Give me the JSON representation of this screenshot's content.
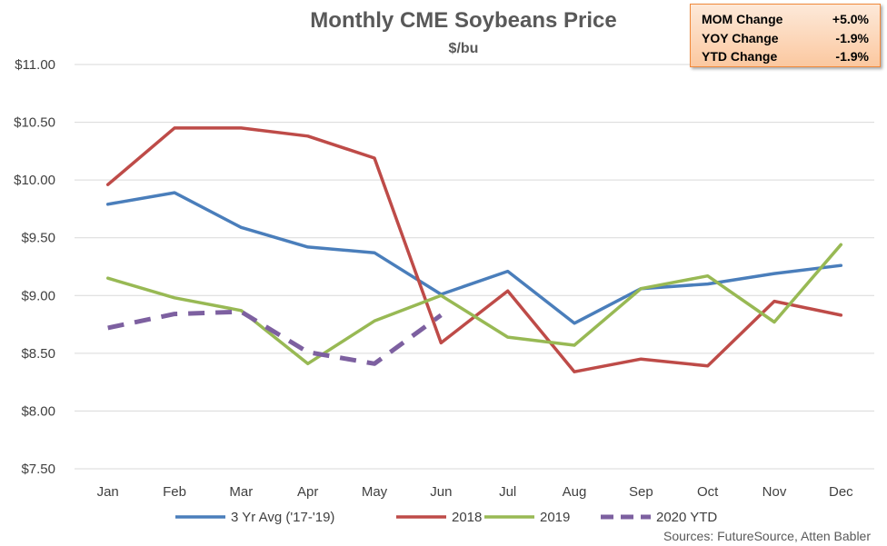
{
  "chart_data": {
    "type": "line",
    "title": "Monthly CME Soybeans Price",
    "subtitle": "$/bu",
    "categories": [
      "Jan",
      "Feb",
      "Mar",
      "Apr",
      "May",
      "Jun",
      "Jul",
      "Aug",
      "Sep",
      "Oct",
      "Nov",
      "Dec"
    ],
    "ylim": [
      7.5,
      11.0
    ],
    "yticks": [
      7.5,
      8.0,
      8.5,
      9.0,
      9.5,
      10.0,
      10.5,
      11.0
    ],
    "ytick_labels": [
      "$7.50",
      "$8.00",
      "$8.50",
      "$9.00",
      "$9.50",
      "$10.00",
      "$10.50",
      "$11.00"
    ],
    "grid": true,
    "legend_position": "bottom",
    "series": [
      {
        "name": "3 Yr Avg ('17-'19)",
        "color": "#4a7ebb",
        "dashed": false,
        "values": [
          9.79,
          9.89,
          9.59,
          9.42,
          9.37,
          9.01,
          9.21,
          8.76,
          9.06,
          9.1,
          9.19,
          9.26
        ]
      },
      {
        "name": "2018",
        "color": "#be4b48",
        "dashed": false,
        "values": [
          9.96,
          10.45,
          10.45,
          10.38,
          10.19,
          8.59,
          9.04,
          8.34,
          8.45,
          8.39,
          8.95,
          8.83
        ]
      },
      {
        "name": "2019",
        "color": "#98b954",
        "dashed": false,
        "values": [
          9.15,
          8.98,
          8.87,
          8.41,
          8.78,
          9.0,
          8.64,
          8.57,
          9.06,
          9.17,
          8.77,
          9.44
        ]
      },
      {
        "name": "2020 YTD",
        "color": "#7d60a0",
        "dashed": true,
        "values": [
          8.72,
          8.84,
          8.86,
          8.51,
          8.41,
          8.83,
          null,
          null,
          null,
          null,
          null,
          null
        ]
      }
    ],
    "annotations": {
      "source": "Sources: FutureSource, Atten Babler"
    }
  },
  "stats_box": {
    "rows": [
      {
        "label": "MOM Change",
        "value": "+5.0%"
      },
      {
        "label": "YOY Change",
        "value": "-1.9%"
      },
      {
        "label": "YTD Change",
        "value": "-1.9%"
      }
    ],
    "border_color": "#f08a3c"
  }
}
